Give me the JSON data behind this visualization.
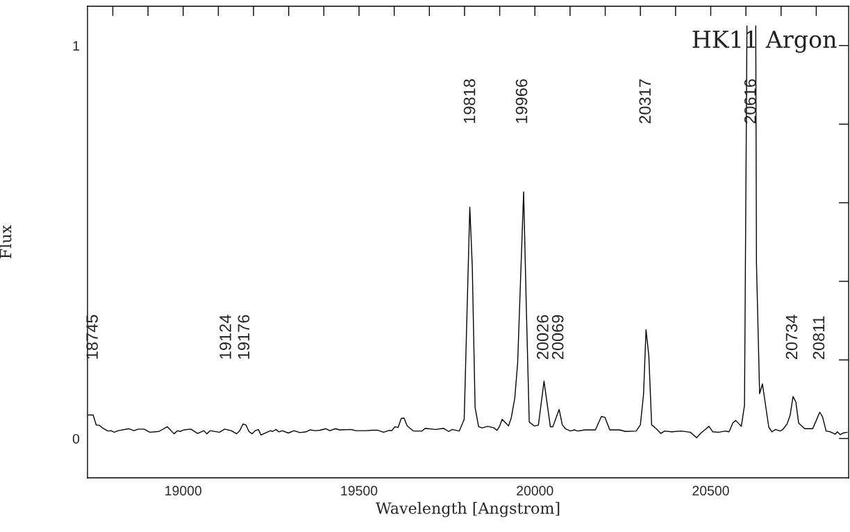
{
  "chart_data": {
    "type": "line",
    "title": "HK11 Argon",
    "xlabel": "Wavelength [Angstrom]",
    "ylabel": "Flux",
    "xlim": [
      18728,
      20892
    ],
    "ylim": [
      -0.1,
      1.1
    ],
    "xticks": [
      {
        "value": 18800,
        "label": null
      },
      {
        "value": 18900,
        "label": null
      },
      19000,
      {
        "value": 19100,
        "label": null
      },
      {
        "value": 19200,
        "label": null
      },
      {
        "value": 19300,
        "label": null
      },
      {
        "value": 19400,
        "label": null
      },
      19500,
      {
        "value": 19600,
        "label": null
      },
      {
        "value": 19700,
        "label": null
      },
      {
        "value": 19800,
        "label": null
      },
      {
        "value": 19900,
        "label": null
      },
      20000,
      {
        "value": 20100,
        "label": null
      },
      {
        "value": 20200,
        "label": null
      },
      {
        "value": 20300,
        "label": null
      },
      {
        "value": 20400,
        "label": null
      },
      20500,
      {
        "value": 20600,
        "label": null
      },
      {
        "value": 20700,
        "label": null
      },
      {
        "value": 20800,
        "label": null
      }
    ],
    "yticks": [
      0,
      {
        "value": 0.2,
        "label": null
      },
      {
        "value": 0.4,
        "label": null
      },
      {
        "value": 0.6,
        "label": null
      },
      {
        "value": 0.8,
        "label": null
      },
      1
    ],
    "grid": false,
    "legend": false,
    "marker": "none",
    "line_style": "solid",
    "annotations": [
      "18745",
      "19124",
      "19176",
      "19818",
      "19966",
      "20026",
      "20069",
      "20317",
      "20616",
      "20734",
      "20811"
    ],
    "series": [
      {
        "color": "#000000",
        "x": [
          18728,
          18744,
          18753,
          18761,
          18772,
          18786,
          18795,
          18804,
          18815,
          18846,
          18860,
          18872,
          18889,
          18905,
          18931,
          18955,
          18974,
          18984,
          18992,
          19002,
          19022,
          19041,
          19059,
          19067,
          19077,
          19103,
          19118,
          19137,
          19152,
          19161,
          19170,
          19179,
          19187,
          19196,
          19205,
          19214,
          19221,
          19248,
          19254,
          19264,
          19272,
          19282,
          19299,
          19315,
          19332,
          19349,
          19361,
          19376,
          19389,
          19406,
          19417,
          19433,
          19445,
          19477,
          19491,
          19519,
          19537,
          19554,
          19570,
          19586,
          19593,
          19602,
          19611,
          19620,
          19628,
          19637,
          19655,
          19679,
          19688,
          19718,
          19740,
          19755,
          19765,
          19785,
          19799,
          19815,
          19822,
          19830,
          19840,
          19850,
          19866,
          19884,
          19892,
          19899,
          19907,
          19925,
          19933,
          19943,
          19951,
          19968,
          19976,
          19984,
          19998,
          20010,
          20026,
          20044,
          20051,
          20069,
          20078,
          20087,
          20101,
          20112,
          20122,
          20142,
          20172,
          20189,
          20199,
          20213,
          20241,
          20258,
          20288,
          20300,
          20309,
          20316,
          20324,
          20332,
          20345,
          20358,
          20369,
          20389,
          20416,
          20442,
          20460,
          20471,
          20495,
          20506,
          20523,
          20541,
          20552,
          20563,
          20571,
          20587,
          20596,
          20603,
          20616,
          20628,
          20630,
          20639,
          20647,
          20665,
          20674,
          20684,
          20697,
          20704,
          20717,
          20726,
          20734,
          20742,
          20750,
          20767,
          20790,
          20800,
          20810,
          20818,
          20828,
          20840,
          20854,
          20860,
          20868,
          20877,
          20888
        ],
        "values": [
          0.06,
          0.06,
          0.034,
          0.034,
          0.026,
          0.019,
          0.02,
          0.016,
          0.02,
          0.025,
          0.02,
          0.024,
          0.024,
          0.016,
          0.018,
          0.03,
          0.012,
          0.02,
          0.018,
          0.022,
          0.024,
          0.013,
          0.02,
          0.012,
          0.02,
          0.016,
          0.024,
          0.02,
          0.012,
          0.02,
          0.037,
          0.034,
          0.018,
          0.012,
          0.02,
          0.023,
          0.009,
          0.02,
          0.018,
          0.023,
          0.017,
          0.02,
          0.014,
          0.02,
          0.015,
          0.017,
          0.022,
          0.02,
          0.021,
          0.025,
          0.02,
          0.025,
          0.022,
          0.023,
          0.02,
          0.02,
          0.021,
          0.021,
          0.016,
          0.021,
          0.02,
          0.03,
          0.028,
          0.051,
          0.052,
          0.032,
          0.019,
          0.019,
          0.026,
          0.023,
          0.026,
          0.018,
          0.023,
          0.019,
          0.049,
          0.589,
          0.439,
          0.079,
          0.03,
          0.027,
          0.031,
          0.027,
          0.021,
          0.03,
          0.049,
          0.032,
          0.053,
          0.104,
          0.192,
          0.628,
          0.321,
          0.042,
          0.032,
          0.034,
          0.146,
          0.03,
          0.03,
          0.074,
          0.035,
          0.025,
          0.019,
          0.022,
          0.019,
          0.022,
          0.022,
          0.056,
          0.054,
          0.022,
          0.022,
          0.018,
          0.019,
          0.035,
          0.113,
          0.277,
          0.21,
          0.035,
          0.025,
          0.013,
          0.019,
          0.017,
          0.019,
          0.016,
          0.002,
          0.013,
          0.031,
          0.017,
          0.016,
          0.019,
          0.017,
          0.04,
          0.046,
          0.031,
          0.085,
          1.05,
          null,
          1.05,
          0.446,
          0.114,
          0.139,
          0.029,
          0.017,
          0.023,
          0.019,
          0.022,
          0.037,
          0.06,
          0.107,
          0.093,
          0.039,
          0.025,
          0.025,
          0.046,
          0.067,
          0.055,
          0.019,
          0.017,
          0.011,
          0.017,
          0.01,
          0.014,
          0.016
        ]
      }
    ]
  }
}
